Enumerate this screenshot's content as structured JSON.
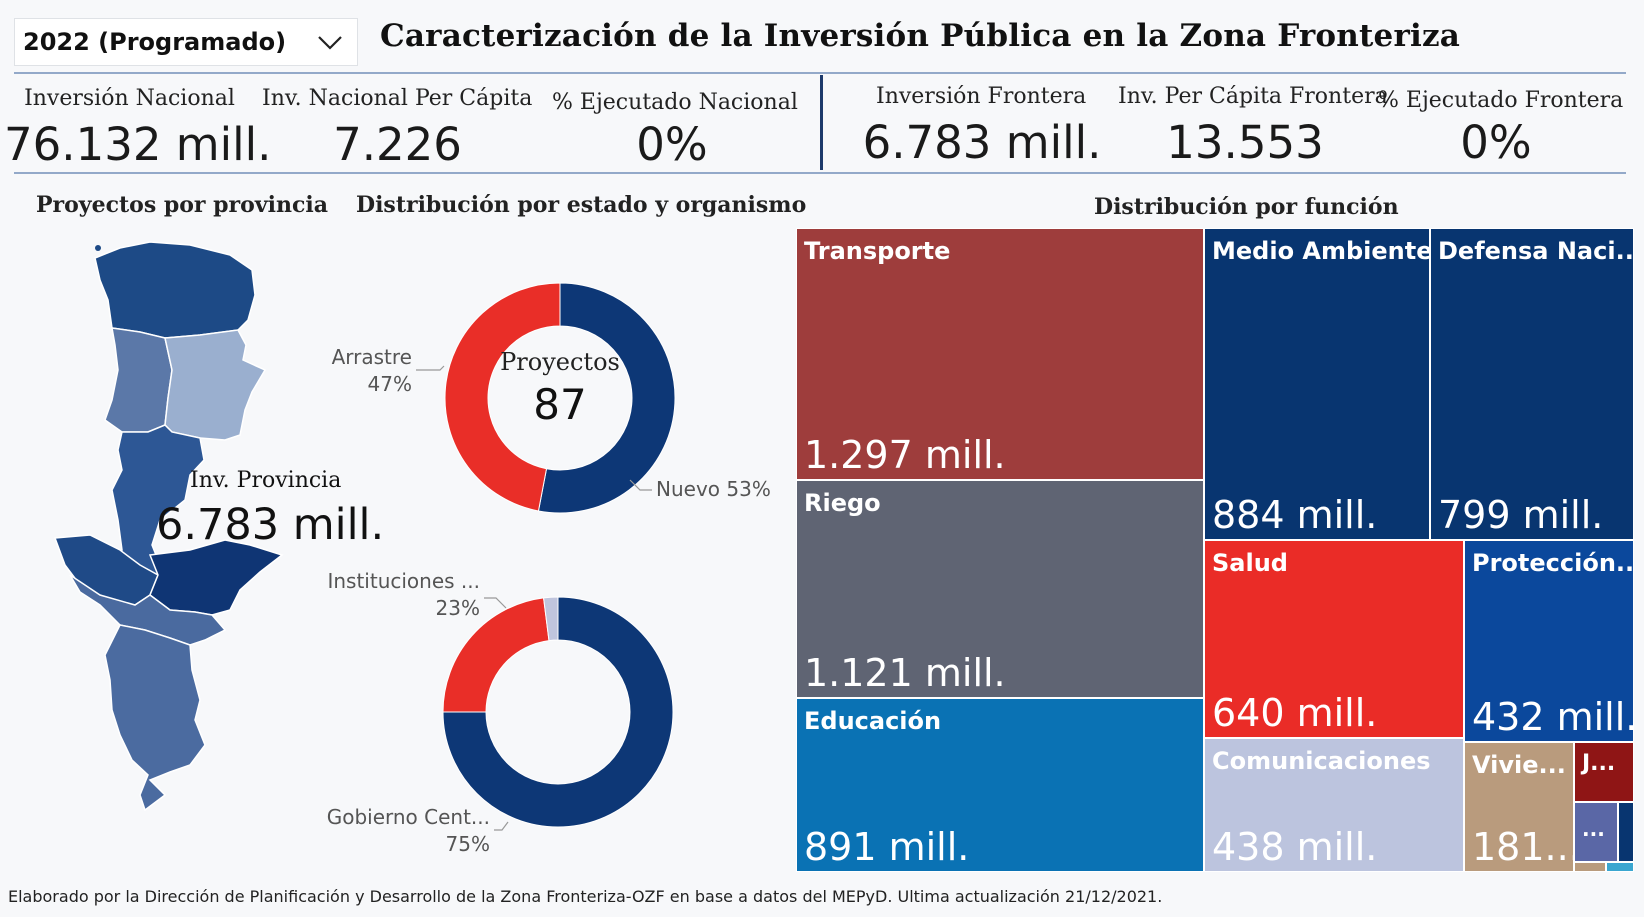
{
  "filter": {
    "selected": "2022 (Programado)"
  },
  "title": "Caracterización de la Inversión Pública en la Zona Fronteriza",
  "kpis": {
    "nacional": [
      {
        "label": "Inversión Nacional",
        "value": "76.132 mill."
      },
      {
        "label": "Inv. Nacional Per Cápita",
        "value": "7.226"
      },
      {
        "label": "% Ejecutado Nacional",
        "value": "0%"
      }
    ],
    "frontera": [
      {
        "label": "Inversión Frontera",
        "value": "6.783 mill."
      },
      {
        "label": "Inv. Per Cápita Frontera",
        "value": "13.553"
      },
      {
        "label": "% Ejecutado Frontera",
        "value": "0%"
      }
    ]
  },
  "sections": {
    "provincia": "Proyectos por provincia",
    "estado": "Distribución por estado y organismo",
    "funcion": "Distribución por función"
  },
  "map": {
    "label": "Inv. Provincia",
    "value": "6.783 mill."
  },
  "donut_estado": {
    "center_label": "Proyectos",
    "center_value": "87",
    "slices": [
      {
        "label": "Nuevo",
        "pct_text": "53%",
        "value": 53,
        "color": "#0d3776"
      },
      {
        "label": "Arrastre",
        "pct_text": "47%",
        "value": 47,
        "color": "#e92e28"
      }
    ]
  },
  "donut_organismo": {
    "slices": [
      {
        "label": "Gobierno Cent...",
        "pct_text": "75%",
        "value": 75,
        "color": "#0d3776"
      },
      {
        "label": "Instituciones ...",
        "pct_text": "23%",
        "value": 23,
        "color": "#e92e28"
      },
      {
        "label": "",
        "pct_text": "",
        "value": 2,
        "color": "#c0c5dd"
      }
    ]
  },
  "treemap": {
    "tiles": [
      {
        "name": "Transporte",
        "value": "1.297 mill.",
        "color": "#9e3d3c"
      },
      {
        "name": "Riego",
        "value": "1.121 mill.",
        "color": "#5f6473"
      },
      {
        "name": "Educación",
        "value": "891 mill.",
        "color": "#0a72b4"
      },
      {
        "name": "Medio Ambiente",
        "value": "884 mill.",
        "color": "#083570"
      },
      {
        "name": "Defensa Naci...",
        "value": "799 mill.",
        "color": "#083570"
      },
      {
        "name": "Salud",
        "value": "640 mill.",
        "color": "#ea2c27"
      },
      {
        "name": "Protección...",
        "value": "432 mill.",
        "color": "#0b489c"
      },
      {
        "name": "Comunicaciones",
        "value": "438 mill.",
        "color": "#bcc4de"
      },
      {
        "name": "Vivie...",
        "value": "181...",
        "color": "#b99b7d"
      },
      {
        "name": "J...",
        "value": "",
        "color": "#8f1515"
      },
      {
        "name": "...",
        "value": "",
        "color": "#5a67a6"
      }
    ]
  },
  "footer": "Elaborado por la Dirección de Planificación y Desarrollo de la Zona Fronteriza-OZF en base a datos del MEPyD. Ultima actualización 21/12/2021."
}
